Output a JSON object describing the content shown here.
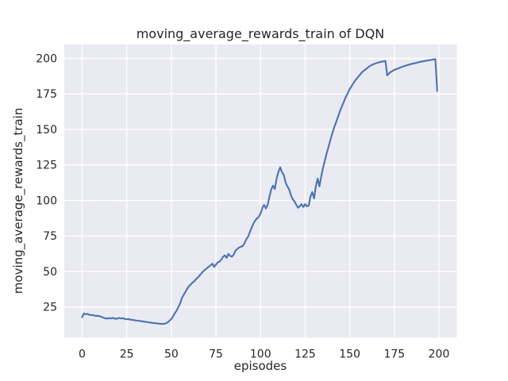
{
  "style": {
    "figure_bg": "#ffffff",
    "axes_bg": "#eaeaf2",
    "grid_color": "#ffffff",
    "text_color": "#262626",
    "line_color": "#4c72b0"
  },
  "chart_data": {
    "type": "line",
    "title": "moving_average_rewards_train of DQN",
    "xlabel": "episodes",
    "ylabel": "moving_average_rewards_train",
    "x_ticks": [
      0,
      25,
      50,
      75,
      100,
      125,
      150,
      175,
      200
    ],
    "y_ticks": [
      25,
      50,
      75,
      100,
      125,
      150,
      175,
      200
    ],
    "xlim": [
      -10,
      210
    ],
    "ylim": [
      3.4,
      209.8
    ],
    "grid": true,
    "legend": false,
    "series": [
      {
        "name": "DQN",
        "color": "#4c72b0",
        "x0": 0,
        "dx": 1,
        "values": [
          17.9,
          20.5,
          19.9,
          20.2,
          19.6,
          19.3,
          19.4,
          19.0,
          18.7,
          18.9,
          18.4,
          18.0,
          17.5,
          17.1,
          16.8,
          17.3,
          16.9,
          17.4,
          17.0,
          16.7,
          17.1,
          17.3,
          16.9,
          17.2,
          16.6,
          16.4,
          16.5,
          16.2,
          16.0,
          15.8,
          15.6,
          15.4,
          15.3,
          15.1,
          14.9,
          14.7,
          14.5,
          14.3,
          14.1,
          13.9,
          13.8,
          13.6,
          13.5,
          13.3,
          13.2,
          13.1,
          13.2,
          13.6,
          14.3,
          15.4,
          16.6,
          18.5,
          20.8,
          22.6,
          25.2,
          27.8,
          31.5,
          33.8,
          35.8,
          38.2,
          39.8,
          41.0,
          42.4,
          43.4,
          44.9,
          45.9,
          47.4,
          48.9,
          50.4,
          51.4,
          52.4,
          53.4,
          54.4,
          55.6,
          53.2,
          54.9,
          56.4,
          57.0,
          58.4,
          60.4,
          61.4,
          59.6,
          62.4,
          61.0,
          60.5,
          62.0,
          64.8,
          65.9,
          66.9,
          67.4,
          68.0,
          69.9,
          72.8,
          74.4,
          77.8,
          80.8,
          83.8,
          85.9,
          87.4,
          88.4,
          90.9,
          94.8,
          96.9,
          94.4,
          96.9,
          102.8,
          107.8,
          110.4,
          108.0,
          115.4,
          119.9,
          123.4,
          119.9,
          117.9,
          112.9,
          109.9,
          107.9,
          103.9,
          100.9,
          99.4,
          96.9,
          94.9,
          95.9,
          97.4,
          95.4,
          97.4,
          95.9,
          96.4,
          102.9,
          105.9,
          101.4,
          109.9,
          115.4,
          109.9,
          116.9,
          122.9,
          127.9,
          132.9,
          137.4,
          141.9,
          146.4,
          150.4,
          153.9,
          157.4,
          160.9,
          164.4,
          167.4,
          170.4,
          173.4,
          175.9,
          178.4,
          180.4,
          182.4,
          184.4,
          185.9,
          187.4,
          188.9,
          190.4,
          191.4,
          192.4,
          193.4,
          194.4,
          195.1,
          195.7,
          196.2,
          196.7,
          197.1,
          197.4,
          197.7,
          197.9,
          198.1,
          188.0,
          189.4,
          190.4,
          191.2,
          191.9,
          192.4,
          192.9,
          193.4,
          193.9,
          194.3,
          194.7,
          195.1,
          195.5,
          195.9,
          196.2,
          196.5,
          196.8,
          197.1,
          197.4,
          197.7,
          197.9,
          198.2,
          198.4,
          198.6,
          198.8,
          199.0,
          199.3,
          199.5,
          177.0
        ]
      }
    ]
  }
}
